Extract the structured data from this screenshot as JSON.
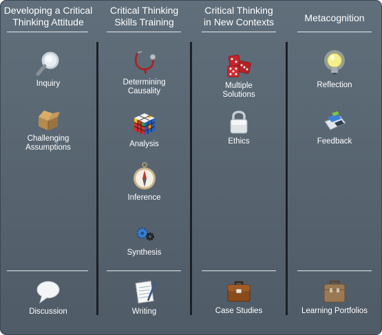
{
  "columns": [
    {
      "heading": "Developing a Critical\nThinking Attitude",
      "items": [
        {
          "label": "Inquiry",
          "icon": "magnifier-icon"
        },
        {
          "label": "Challenging\nAssumptions",
          "icon": "open-box-icon"
        }
      ],
      "footer": {
        "label": "Discussion",
        "icon": "speech-bubble-icon"
      }
    },
    {
      "heading": "Critical Thinking\nSkills Training",
      "items": [
        {
          "label": "Determining\nCausality",
          "icon": "stethoscope-icon"
        },
        {
          "label": "Analysis",
          "icon": "rubiks-cube-icon"
        },
        {
          "label": "Inference",
          "icon": "compass-icon"
        },
        {
          "label": "Synthesis",
          "icon": "gears-icon"
        }
      ],
      "footer": {
        "label": "Writing",
        "icon": "notepad-pen-icon"
      }
    },
    {
      "heading": "Critical Thinking\nin New Contexts",
      "items": [
        {
          "label": "Multiple\nSolutions",
          "icon": "dice-icon"
        },
        {
          "label": "Ethics",
          "icon": "padlock-icon"
        }
      ],
      "footer": {
        "label": "Case Studies",
        "icon": "briefcase-icon"
      }
    },
    {
      "heading": "Metacognition",
      "items": [
        {
          "label": "Reflection",
          "icon": "light-bulb-icon"
        },
        {
          "label": "Feedback",
          "icon": "chat-feedback-icon"
        }
      ],
      "footer": {
        "label": "Learning Portfolios",
        "icon": "portfolio-icon"
      }
    }
  ],
  "colors": {
    "panel": "#5a6773",
    "text": "#ffffff",
    "separator": "#1b2026"
  }
}
